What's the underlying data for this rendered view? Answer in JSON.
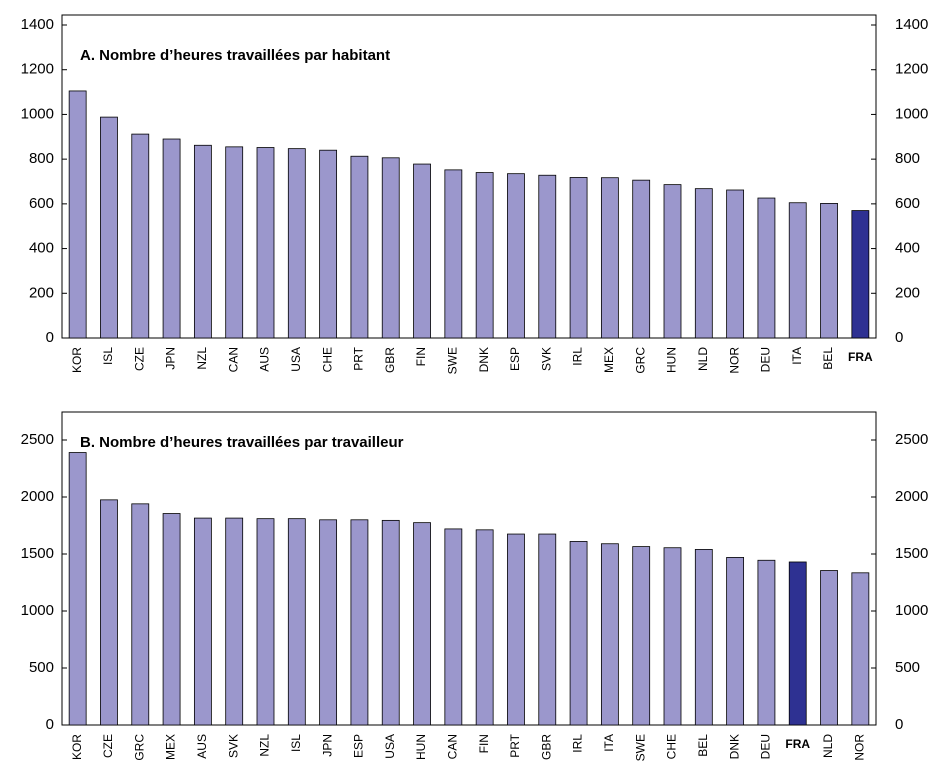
{
  "chart_data": [
    {
      "type": "bar",
      "title": "A. Nombre d’heures travaillées par habitant",
      "categories": [
        "KOR",
        "ISL",
        "CZE",
        "JPN",
        "NZL",
        "CAN",
        "AUS",
        "USA",
        "CHE",
        "PRT",
        "GBR",
        "FIN",
        "SWE",
        "DNK",
        "ESP",
        "SVK",
        "IRL",
        "MEX",
        "GRC",
        "HUN",
        "NLD",
        "NOR",
        "DEU",
        "ITA",
        "BEL",
        "FRA"
      ],
      "values": [
        1105,
        988,
        912,
        890,
        862,
        855,
        852,
        847,
        840,
        813,
        806,
        778,
        752,
        740,
        735,
        728,
        718,
        717,
        706,
        686,
        668,
        662,
        626,
        605,
        602,
        570
      ],
      "color": "#9b97cc",
      "colors": [
        "#9b97cc",
        "#9b97cc",
        "#9b97cc",
        "#9b97cc",
        "#9b97cc",
        "#9b97cc",
        "#9b97cc",
        "#9b97cc",
        "#9b97cc",
        "#9b97cc",
        "#9b97cc",
        "#9b97cc",
        "#9b97cc",
        "#9b97cc",
        "#9b97cc",
        "#9b97cc",
        "#9b97cc",
        "#9b97cc",
        "#9b97cc",
        "#9b97cc",
        "#9b97cc",
        "#9b97cc",
        "#9b97cc",
        "#9b97cc",
        "#9b97cc",
        "#2e3192"
      ],
      "ylim": [
        0,
        1400
      ],
      "yticks": [
        0,
        200,
        400,
        600,
        800,
        1000,
        1200,
        1400
      ],
      "mirror_y_axis": true,
      "grid": false
    },
    {
      "type": "bar",
      "title": "B. Nombre d’heures travaillées par travailleur",
      "categories": [
        "KOR",
        "CZE",
        "GRC",
        "MEX",
        "AUS",
        "SVK",
        "NZL",
        "ISL",
        "JPN",
        "ESP",
        "USA",
        "HUN",
        "CAN",
        "FIN",
        "PRT",
        "GBR",
        "IRL",
        "ITA",
        "SWE",
        "CHE",
        "BEL",
        "DNK",
        "DEU",
        "FRA",
        "NLD",
        "NOR"
      ],
      "values": [
        2390,
        1975,
        1940,
        1855,
        1815,
        1815,
        1810,
        1810,
        1800,
        1800,
        1795,
        1775,
        1720,
        1712,
        1675,
        1675,
        1610,
        1590,
        1565,
        1555,
        1540,
        1470,
        1445,
        1430,
        1355,
        1335
      ],
      "color": "#9b97cc",
      "colors": [
        "#9b97cc",
        "#9b97cc",
        "#9b97cc",
        "#9b97cc",
        "#9b97cc",
        "#9b97cc",
        "#9b97cc",
        "#9b97cc",
        "#9b97cc",
        "#9b97cc",
        "#9b97cc",
        "#9b97cc",
        "#9b97cc",
        "#9b97cc",
        "#9b97cc",
        "#9b97cc",
        "#9b97cc",
        "#9b97cc",
        "#9b97cc",
        "#9b97cc",
        "#9b97cc",
        "#9b97cc",
        "#9b97cc",
        "#2e3192",
        "#9b97cc",
        "#9b97cc"
      ],
      "ylim": [
        0,
        2500
      ],
      "yticks": [
        0,
        500,
        1000,
        1500,
        2000,
        2500
      ],
      "mirror_y_axis": true,
      "grid": false
    }
  ]
}
